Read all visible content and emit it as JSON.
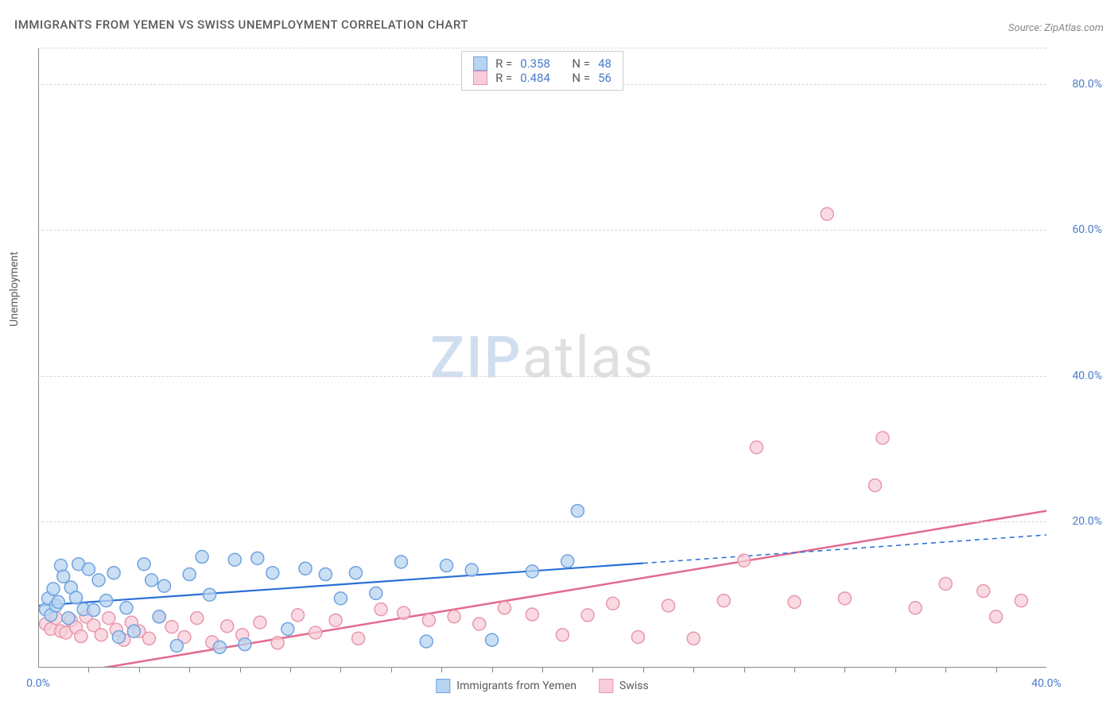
{
  "title": "IMMIGRANTS FROM YEMEN VS SWISS UNEMPLOYMENT CORRELATION CHART",
  "source": "Source: ZipAtlas.com",
  "watermark": {
    "zip": "ZIP",
    "atlas": "atlas"
  },
  "chart": {
    "type": "scatter",
    "ylabel": "Unemployment",
    "xlim": [
      0,
      40
    ],
    "ylim": [
      0,
      85
    ],
    "background_color": "#ffffff",
    "grid_color": "#d8d8d8",
    "axis_color": "#888888",
    "tick_label_color": "#4a7bc8",
    "y_ticks": [
      {
        "v": 20,
        "label": "20.0%"
      },
      {
        "v": 40,
        "label": "40.0%"
      },
      {
        "v": 60,
        "label": "60.0%"
      },
      {
        "v": 80,
        "label": "80.0%"
      }
    ],
    "x_ticks_labeled": [
      {
        "v": 0,
        "label": "0.0%"
      },
      {
        "v": 40,
        "label": "40.0%"
      }
    ],
    "x_ticks_minor": [
      2,
      4,
      6,
      8,
      10,
      12,
      14,
      16,
      18,
      20,
      22,
      24,
      26,
      28,
      30,
      32,
      34,
      36,
      38
    ],
    "marker_radius": 8,
    "marker_stroke_width": 1.5,
    "series": {
      "yemen": {
        "label": "Immigrants from Yemen",
        "fill": "#b8d4f0",
        "stroke": "#6fa3e0",
        "r_stat": "0.358",
        "n_stat": "48",
        "trend": {
          "solid_to_x": 24,
          "y_at_0": 8.5,
          "y_at_40": 18.2,
          "color": "#2a6fd6",
          "width": 2.2
        },
        "points": [
          [
            0.3,
            8.0
          ],
          [
            0.4,
            9.5
          ],
          [
            0.5,
            7.2
          ],
          [
            0.6,
            10.8
          ],
          [
            0.7,
            8.5
          ],
          [
            0.8,
            9.0
          ],
          [
            0.9,
            14.0
          ],
          [
            1.0,
            12.5
          ],
          [
            1.2,
            6.8
          ],
          [
            1.3,
            11.0
          ],
          [
            1.5,
            9.6
          ],
          [
            1.6,
            14.2
          ],
          [
            1.8,
            8.0
          ],
          [
            2.0,
            13.5
          ],
          [
            2.2,
            7.9
          ],
          [
            2.4,
            12.0
          ],
          [
            2.7,
            9.2
          ],
          [
            3.0,
            13.0
          ],
          [
            3.2,
            4.2
          ],
          [
            3.5,
            8.2
          ],
          [
            3.8,
            5.0
          ],
          [
            4.2,
            14.2
          ],
          [
            4.5,
            12.0
          ],
          [
            4.8,
            7.0
          ],
          [
            5.0,
            11.2
          ],
          [
            5.5,
            3.0
          ],
          [
            6.0,
            12.8
          ],
          [
            6.5,
            15.2
          ],
          [
            6.8,
            10.0
          ],
          [
            7.2,
            2.8
          ],
          [
            7.8,
            14.8
          ],
          [
            8.2,
            3.2
          ],
          [
            8.7,
            15.0
          ],
          [
            9.3,
            13.0
          ],
          [
            9.9,
            5.3
          ],
          [
            10.6,
            13.6
          ],
          [
            11.4,
            12.8
          ],
          [
            12.0,
            9.5
          ],
          [
            12.6,
            13.0
          ],
          [
            13.4,
            10.2
          ],
          [
            14.4,
            14.5
          ],
          [
            15.4,
            3.6
          ],
          [
            16.2,
            14.0
          ],
          [
            17.2,
            13.4
          ],
          [
            18.0,
            3.8
          ],
          [
            19.6,
            13.2
          ],
          [
            21.0,
            14.6
          ],
          [
            21.4,
            21.5
          ]
        ]
      },
      "swiss": {
        "label": "Swiss",
        "fill": "#f8cdd8",
        "stroke": "#e897ad",
        "r_stat": "0.484",
        "n_stat": "56",
        "trend": {
          "solid_to_x": 40,
          "y_at_0": -1.5,
          "y_at_40": 21.5,
          "color": "#e36a8e",
          "width": 2.5
        },
        "points": [
          [
            0.3,
            6.0
          ],
          [
            0.5,
            5.3
          ],
          [
            0.7,
            6.8
          ],
          [
            0.9,
            5.0
          ],
          [
            1.1,
            4.8
          ],
          [
            1.3,
            6.5
          ],
          [
            1.5,
            5.5
          ],
          [
            1.7,
            4.3
          ],
          [
            1.9,
            7.0
          ],
          [
            2.2,
            5.8
          ],
          [
            2.5,
            4.5
          ],
          [
            2.8,
            6.8
          ],
          [
            3.1,
            5.2
          ],
          [
            3.4,
            3.8
          ],
          [
            3.7,
            6.2
          ],
          [
            4.0,
            5.0
          ],
          [
            4.4,
            4.0
          ],
          [
            4.8,
            7.0
          ],
          [
            5.3,
            5.6
          ],
          [
            5.8,
            4.2
          ],
          [
            6.3,
            6.8
          ],
          [
            6.9,
            3.5
          ],
          [
            7.5,
            5.7
          ],
          [
            8.1,
            4.5
          ],
          [
            8.8,
            6.2
          ],
          [
            9.5,
            3.4
          ],
          [
            10.3,
            7.2
          ],
          [
            11.0,
            4.8
          ],
          [
            11.8,
            6.5
          ],
          [
            12.7,
            4.0
          ],
          [
            13.6,
            8.0
          ],
          [
            14.5,
            7.5
          ],
          [
            15.5,
            6.5
          ],
          [
            16.5,
            7.0
          ],
          [
            17.5,
            6.0
          ],
          [
            18.5,
            8.2
          ],
          [
            19.6,
            7.3
          ],
          [
            20.8,
            4.5
          ],
          [
            21.8,
            7.2
          ],
          [
            22.8,
            8.8
          ],
          [
            23.8,
            4.2
          ],
          [
            25.0,
            8.5
          ],
          [
            26.0,
            4.0
          ],
          [
            27.2,
            9.2
          ],
          [
            28.0,
            14.7
          ],
          [
            28.5,
            30.2
          ],
          [
            30.0,
            9.0
          ],
          [
            31.3,
            62.2
          ],
          [
            32.0,
            9.5
          ],
          [
            33.2,
            25.0
          ],
          [
            33.5,
            31.5
          ],
          [
            34.8,
            8.2
          ],
          [
            36.0,
            11.5
          ],
          [
            37.5,
            10.5
          ],
          [
            38.0,
            7.0
          ],
          [
            39.0,
            9.2
          ]
        ]
      }
    },
    "legend_bottom": {
      "yemen": "Immigrants from Yemen",
      "swiss": "Swiss"
    },
    "legend_top_labels": {
      "r": "R = ",
      "n": "N = "
    }
  }
}
